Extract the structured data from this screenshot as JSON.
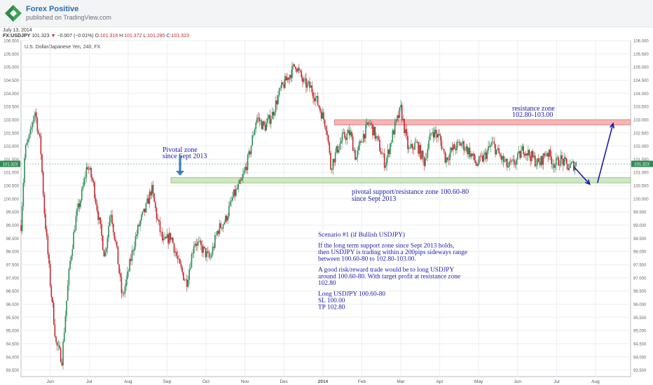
{
  "header": {
    "brand": "Forex Positive",
    "published": "published on TradingView.com",
    "date": "July 13, 2014"
  },
  "ohlc": {
    "symbol": "FX:USDJPY",
    "last": "101.323",
    "change": "−0.007 (−0.01%)",
    "open_label": "O:",
    "open": "101.316",
    "high_label": "H:",
    "high": "101.372",
    "low_label": "L:",
    "low": "101.285",
    "close_label": "C:",
    "close": "101.323"
  },
  "colors": {
    "up": "#2e8b57",
    "down": "#c0282d",
    "resistance_fill": "#f6b5b5",
    "support_fill": "#cfe8c4",
    "annotation": "#1a1aa8",
    "arrow_blue": "#3b7bc8"
  },
  "chart_data": {
    "type": "candlestick",
    "title": "U.S. Dollar/Japanese Yen, 240, FX",
    "ylim": [
      93.25,
      106.0
    ],
    "y_ticks": [
      93.5,
      94.0,
      94.5,
      95.0,
      95.5,
      96.0,
      96.5,
      97.0,
      97.5,
      98.0,
      98.5,
      99.0,
      99.5,
      100.0,
      100.5,
      101.0,
      101.5,
      102.0,
      102.5,
      103.0,
      103.5,
      104.0,
      104.5,
      105.0,
      105.5,
      106.0
    ],
    "y_tick_labels": [
      "93.500",
      "94.000",
      "94.500",
      "95.000",
      "95.500",
      "96.000",
      "96.500",
      "97.000",
      "97.500",
      "98.000",
      "98.500",
      "99.000",
      "99.500",
      "100.000",
      "100.500",
      "101.000",
      "101.500",
      "102.000",
      "102.500",
      "103.000",
      "103.500",
      "104.000",
      "104.500",
      "105.000",
      "105.500",
      "106.000"
    ],
    "x_labels": [
      "Jun",
      "Jul",
      "Aug",
      "Sep",
      "Oct",
      "Nov",
      "Dec",
      "2014",
      "Feb",
      "Mar",
      "Apr",
      "May",
      "Jun",
      "Jul",
      "Aug"
    ],
    "x_label_pos": [
      1.0,
      2.0,
      3.0,
      4.0,
      5.0,
      6.0,
      7.0,
      8.0,
      9.0,
      10.0,
      11.0,
      12.0,
      13.0,
      14.0,
      15.0
    ],
    "xlim": [
      0.25,
      15.9
    ],
    "last_price": 101.323,
    "last_price_label": "101.323",
    "series": [
      {
        "x": [
          0.25,
          0.35,
          0.5,
          0.6,
          0.75,
          0.85,
          1.0,
          1.15,
          1.3,
          1.4,
          1.5,
          1.65,
          1.8,
          1.95,
          2.1,
          2.25,
          2.4,
          2.55,
          2.7,
          2.85,
          3.0,
          3.15,
          3.3,
          3.45,
          3.6,
          3.75,
          3.9,
          4.1,
          4.3,
          4.5,
          4.7,
          4.9,
          5.1,
          5.3,
          5.5,
          5.7,
          5.9,
          6.1,
          6.3,
          6.5,
          6.7,
          6.9,
          7.1,
          7.3,
          7.5,
          7.7,
          7.9,
          8.1,
          8.2,
          8.35,
          8.5,
          8.7,
          8.85,
          9.0,
          9.2,
          9.4,
          9.6,
          9.8,
          10.0,
          10.2,
          10.4,
          10.6,
          10.8,
          11.0,
          11.15,
          11.35,
          11.55,
          11.75,
          11.95,
          12.15,
          12.35,
          12.55,
          12.75,
          12.95,
          13.15,
          13.35,
          13.55,
          13.75,
          13.95,
          14.1,
          14.3,
          14.5
        ],
        "y": [
          99.0,
          101.8,
          102.5,
          103.4,
          102.0,
          99.5,
          96.8,
          94.5,
          93.9,
          95.8,
          97.5,
          99.2,
          100.1,
          101.3,
          100.6,
          99.2,
          97.8,
          99.6,
          98.1,
          96.2,
          97.2,
          98.3,
          99.1,
          99.6,
          100.4,
          99.2,
          98.3,
          98.6,
          97.5,
          96.8,
          98.4,
          98.1,
          97.7,
          98.8,
          99.2,
          100.1,
          100.6,
          101.6,
          103.1,
          102.7,
          103.2,
          104.1,
          104.6,
          105.1,
          104.4,
          104.2,
          103.5,
          102.7,
          101.2,
          101.8,
          102.3,
          102.5,
          101.5,
          102.3,
          102.9,
          102.2,
          101.3,
          102.5,
          103.4,
          101.8,
          102.1,
          101.4,
          102.6,
          102.3,
          101.5,
          101.9,
          102.1,
          101.8,
          101.3,
          101.6,
          102.1,
          101.6,
          101.2,
          101.4,
          101.9,
          101.6,
          101.3,
          101.8,
          101.3,
          101.5,
          101.2,
          101.323
        ]
      }
    ],
    "zones": [
      {
        "name": "resistance zone",
        "low": 102.8,
        "high": 103.0,
        "x_start": 8.3,
        "x_end": 15.9
      },
      {
        "name": "pivotal zone",
        "low": 100.6,
        "high": 100.8,
        "x_start": 4.1,
        "x_end": 15.9
      }
    ],
    "annotations": {
      "resistance_title": "resistance zone",
      "resistance_range": "102.80-103.00",
      "pivotal_title": "Pivotal zone",
      "pivotal_since": "since Sept 2013",
      "support_line1": "pivotal support/resistance zone 100.60-80",
      "support_line2": "since Sept 2013",
      "scenario": [
        "Scenario #1 (if Bullish USDJPY)",
        "",
        "If the long term support zone since Sept 2013 holds,",
        "then USDJPY is trading within a 200pips sideways range",
        "between 100.60-80 to 102.80-103.00.",
        "",
        "A good risk/reward trade would be to long USDJPY",
        "around 100.60-80. With target profit at resistance zone",
        "102.80",
        "",
        "Long USDJPY 100.60-80",
        "SL 100.00",
        "TP 102.80"
      ]
    },
    "projection": [
      {
        "x": 14.45,
        "y": 101.2
      },
      {
        "x": 14.85,
        "y": 100.55
      },
      {
        "x": 15.05,
        "y": 100.6
      },
      {
        "x": 15.45,
        "y": 102.85
      }
    ],
    "grid": true
  }
}
